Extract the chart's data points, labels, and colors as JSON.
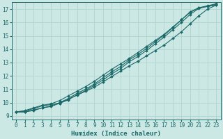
{
  "xlabel": "Humidex (Indice chaleur)",
  "bg_color": "#cce8e4",
  "grid_color": "#b0d4d0",
  "line_color": "#1a6868",
  "xlim": [
    -0.5,
    23.5
  ],
  "ylim": [
    8.75,
    17.5
  ],
  "xticks": [
    0,
    1,
    2,
    3,
    4,
    5,
    6,
    7,
    8,
    9,
    10,
    11,
    12,
    13,
    14,
    15,
    16,
    17,
    18,
    19,
    20,
    21,
    22,
    23
  ],
  "yticks": [
    9,
    10,
    11,
    12,
    13,
    14,
    15,
    16,
    17
  ],
  "lines": [
    [
      9.3,
      9.35,
      9.55,
      9.75,
      9.85,
      9.95,
      10.25,
      10.55,
      10.85,
      11.15,
      11.55,
      11.95,
      12.35,
      12.75,
      13.1,
      13.5,
      13.9,
      14.3,
      14.8,
      15.3,
      15.9,
      16.5,
      17.0,
      17.3
    ],
    [
      9.3,
      9.4,
      9.6,
      9.8,
      9.9,
      10.15,
      10.5,
      10.85,
      11.2,
      11.6,
      12.05,
      12.5,
      12.9,
      13.3,
      13.75,
      14.2,
      14.65,
      15.1,
      15.65,
      16.2,
      16.75,
      17.1,
      17.25,
      17.4
    ],
    [
      9.3,
      9.3,
      9.45,
      9.6,
      9.75,
      10.0,
      10.3,
      10.7,
      11.0,
      11.4,
      11.85,
      12.3,
      12.7,
      13.2,
      13.6,
      14.05,
      14.55,
      15.05,
      15.6,
      16.2,
      16.8,
      17.1,
      17.2,
      17.35
    ],
    [
      9.3,
      9.3,
      9.4,
      9.6,
      9.7,
      9.95,
      10.2,
      10.6,
      10.9,
      11.3,
      11.7,
      12.15,
      12.55,
      13.05,
      13.45,
      13.9,
      14.4,
      14.9,
      15.45,
      16.0,
      16.6,
      17.05,
      17.2,
      17.3
    ]
  ],
  "marker": "D",
  "markersize": 2.0,
  "linewidth": 0.8,
  "xlabel_fontsize": 6.5,
  "tick_fontsize": 5.5
}
